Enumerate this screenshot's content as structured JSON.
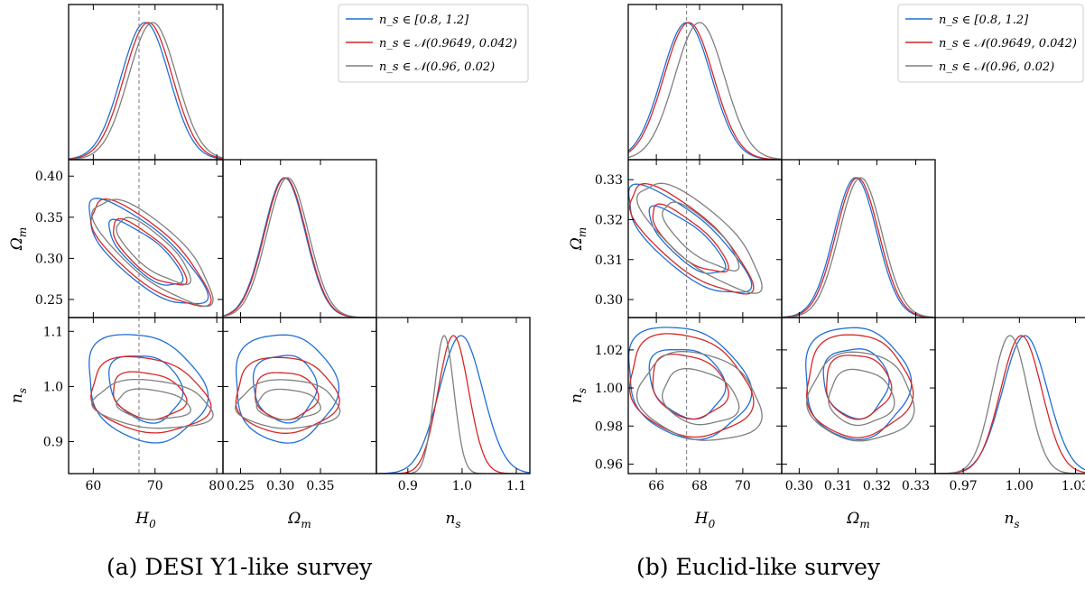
{
  "colors": {
    "blue": "#1f6fd6",
    "red": "#d62728",
    "gray": "#7f7f7f"
  },
  "chart_data": [
    {
      "type": "corner",
      "caption": {
        "prefix": "(a)",
        "text": "DESI Y1-like survey"
      },
      "params": [
        "H0",
        "Omega_m",
        "n_s"
      ],
      "axis_labels": [
        "H",
        "Ω",
        "n"
      ],
      "axis_label_subscripts": [
        "0",
        "m",
        "s"
      ],
      "ranges": {
        "H0": [
          56,
          81
        ],
        "Omega_m": [
          0.228,
          0.42
        ],
        "n_s": [
          0.842,
          1.125
        ]
      },
      "ticks": {
        "H0": {
          "values": [
            60,
            70,
            80
          ],
          "labels": [
            "60",
            "70",
            "80"
          ]
        },
        "Omega_m": {
          "values": [
            0.25,
            0.3,
            0.35
          ],
          "labels": [
            "0.25",
            "0.30",
            "0.35"
          ]
        },
        "Omega_m_y": {
          "values": [
            0.25,
            0.3,
            0.35,
            0.4
          ],
          "labels": [
            "0.25",
            "0.30",
            "0.35",
            "0.40"
          ]
        },
        "n_s": {
          "values": [
            0.9,
            1.0,
            1.1
          ],
          "labels": [
            "0.9",
            "1.0",
            "1.1"
          ]
        },
        "n_s_y": {
          "values": [
            0.9,
            1.0,
            1.1
          ],
          "labels": [
            "0.9",
            "1.0",
            "1.1"
          ]
        }
      },
      "reference": {
        "H0": 67.4
      },
      "series": [
        {
          "name": "n_s ∈ [0.8, 1.2]",
          "color": "blue",
          "mean": {
            "H0": 68.4,
            "Omega_m": 0.305,
            "n_s": 0.998
          },
          "sd": {
            "H0": 3.9,
            "Omega_m": 0.026,
            "n_s": 0.04
          }
        },
        {
          "name": "n_s ∈ 𝒩(0.9649, 0.042)",
          "color": "red",
          "mean": {
            "H0": 68.9,
            "Omega_m": 0.306,
            "n_s": 0.984
          },
          "sd": {
            "H0": 3.9,
            "Omega_m": 0.026,
            "n_s": 0.028
          }
        },
        {
          "name": "n_s ∈ 𝒩(0.96, 0.02)",
          "color": "gray",
          "mean": {
            "H0": 69.6,
            "Omega_m": 0.309,
            "n_s": 0.967
          },
          "sd": {
            "H0": 3.9,
            "Omega_m": 0.026,
            "n_s": 0.018
          }
        }
      ]
    },
    {
      "type": "corner",
      "caption": {
        "prefix": "(b)",
        "text": "Euclid-like survey"
      },
      "params": [
        "H0",
        "Omega_m",
        "n_s"
      ],
      "axis_labels": [
        "H",
        "Ω",
        "n"
      ],
      "axis_label_subscripts": [
        "0",
        "m",
        "s"
      ],
      "ranges": {
        "H0": [
          64.7,
          71.8
        ],
        "Omega_m": [
          0.2955,
          0.335
        ],
        "n_s": [
          0.955,
          1.037
        ]
      },
      "ticks": {
        "H0": {
          "values": [
            66,
            68,
            70
          ],
          "labels": [
            "66",
            "68",
            "70"
          ]
        },
        "Omega_m": {
          "values": [
            0.3,
            0.31,
            0.32,
            0.33
          ],
          "labels": [
            "0.30",
            "0.31",
            "0.32",
            "0.33"
          ]
        },
        "Omega_m_y": {
          "values": [
            0.3,
            0.31,
            0.32,
            0.33
          ],
          "labels": [
            "0.30",
            "0.31",
            "0.32",
            "0.33"
          ]
        },
        "n_s": {
          "values": [
            0.97,
            1.0,
            1.03
          ],
          "labels": [
            "0.97",
            "1.00",
            "1.03"
          ]
        },
        "n_s_y": {
          "values": [
            0.96,
            0.98,
            1.0,
            1.02
          ],
          "labels": [
            "0.96",
            "0.98",
            "1.00",
            "1.02"
          ]
        }
      },
      "reference": {
        "H0": 67.4
      },
      "series": [
        {
          "name": "n_s ∈ [0.8, 1.2]",
          "color": "blue",
          "mean": {
            "H0": 67.4,
            "Omega_m": 0.3145,
            "n_s": 1.003
          },
          "sd": {
            "H0": 1.15,
            "Omega_m": 0.0055,
            "n_s": 0.012
          }
        },
        {
          "name": "n_s ∈ 𝒩(0.9649, 0.042)",
          "color": "red",
          "mean": {
            "H0": 67.5,
            "Omega_m": 0.315,
            "n_s": 1.001
          },
          "sd": {
            "H0": 1.15,
            "Omega_m": 0.0055,
            "n_s": 0.011
          }
        },
        {
          "name": "n_s ∈ 𝒩(0.96, 0.02)",
          "color": "gray",
          "mean": {
            "H0": 68.0,
            "Omega_m": 0.3158,
            "n_s": 0.995
          },
          "sd": {
            "H0": 1.15,
            "Omega_m": 0.0055,
            "n_s": 0.0095
          }
        }
      ]
    }
  ]
}
